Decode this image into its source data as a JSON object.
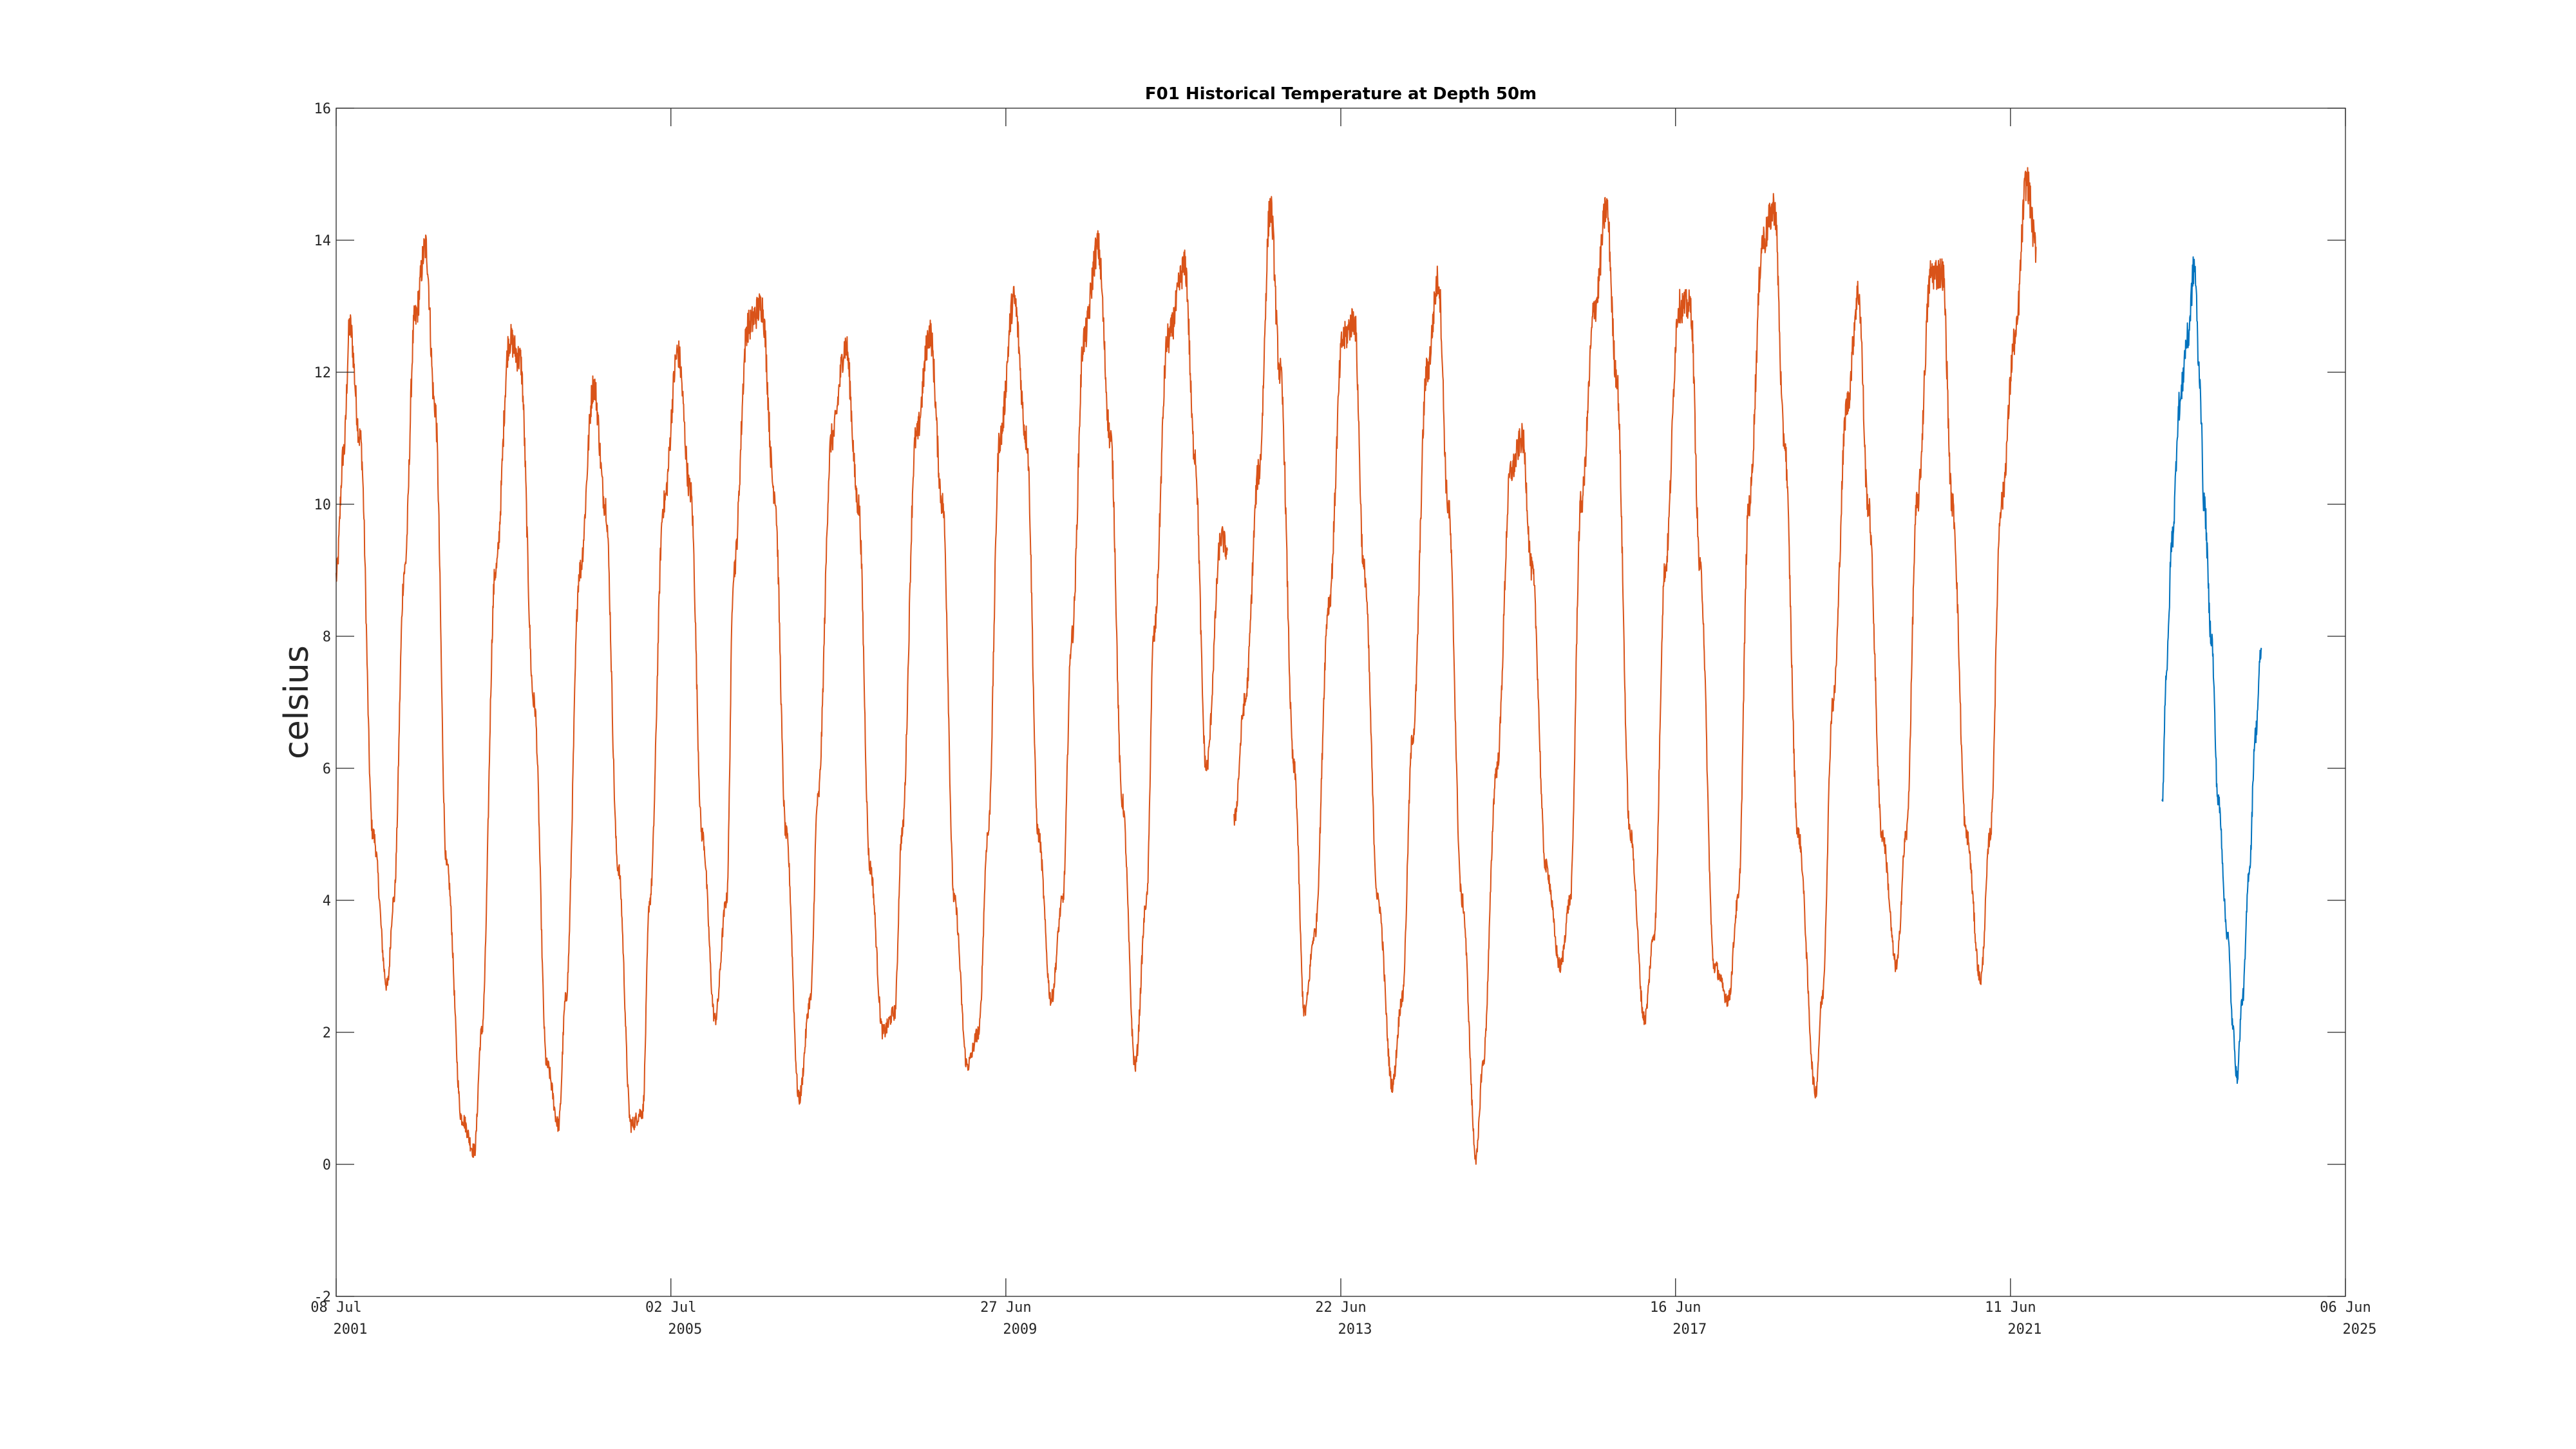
{
  "chart_data": {
    "type": "line",
    "title": "F01 Historical Temperature at Depth 50m",
    "xlabel": "",
    "ylabel": "celsius",
    "xlim": [
      "2001-07-08",
      "2025-06-06"
    ],
    "ylim": [
      -2,
      16
    ],
    "grid": false,
    "x_ticks": [
      {
        "date": "2001-07-08",
        "line1": "08 Jul",
        "line2": "2001"
      },
      {
        "date": "2005-07-02",
        "line1": "02 Jul",
        "line2": "2005"
      },
      {
        "date": "2009-06-27",
        "line1": "27 Jun",
        "line2": "2009"
      },
      {
        "date": "2013-06-22",
        "line1": "22 Jun",
        "line2": "2013"
      },
      {
        "date": "2017-06-16",
        "line1": "16 Jun",
        "line2": "2017"
      },
      {
        "date": "2021-06-11",
        "line1": "11 Jun",
        "line2": "2021"
      },
      {
        "date": "2025-06-06",
        "line1": "06 Jun",
        "line2": "2025"
      }
    ],
    "y_ticks": [
      "-2",
      "0",
      "2",
      "4",
      "6",
      "8",
      "10",
      "12",
      "14",
      "16"
    ],
    "series": [
      {
        "color": "#D95319",
        "x": [
          "2001-07-08",
          "2001-08-10",
          "2001-09-05",
          "2001-10-20",
          "2001-12-15",
          "2002-02-15",
          "2002-03-15",
          "2002-05-01",
          "2002-06-15",
          "2002-08-01",
          "2002-09-10",
          "2002-11-01",
          "2003-01-05",
          "2003-03-01",
          "2003-04-01",
          "2003-06-01",
          "2003-08-01",
          "2003-09-15",
          "2003-11-15",
          "2004-01-10",
          "2004-03-01",
          "2004-04-01",
          "2004-06-01",
          "2004-08-01",
          "2004-09-20",
          "2004-11-15",
          "2005-01-10",
          "2005-03-01",
          "2005-04-01",
          "2005-06-01",
          "2005-08-01",
          "2005-09-25",
          "2005-11-15",
          "2006-01-10",
          "2006-03-01",
          "2006-04-01",
          "2006-06-01",
          "2006-08-01",
          "2006-09-25",
          "2006-11-15",
          "2007-01-10",
          "2007-03-01",
          "2007-04-01",
          "2007-06-01",
          "2007-08-01",
          "2007-09-25",
          "2007-11-15",
          "2008-01-10",
          "2008-03-01",
          "2008-04-01",
          "2008-06-01",
          "2008-08-01",
          "2008-09-25",
          "2008-11-15",
          "2009-01-10",
          "2009-03-01",
          "2009-04-10",
          "2009-06-01",
          "2009-08-01",
          "2009-09-25",
          "2009-11-15",
          "2010-01-10",
          "2010-03-01",
          "2010-04-10",
          "2010-06-01",
          "2010-08-01",
          "2010-09-25",
          "2010-11-15",
          "2011-01-10",
          "2011-03-01",
          "2011-04-01",
          "2011-06-01",
          "2011-08-15",
          "2011-09-25",
          "2011-11-15",
          "2012-01-20",
          "2012-02-15"
        ],
        "y": [
          8.9,
          10.8,
          12.7,
          11.0,
          5.0,
          2.7,
          4.0,
          9.0,
          12.8,
          13.9,
          11.5,
          4.5,
          0.7,
          0.2,
          2.0,
          9.0,
          12.5,
          12.2,
          7.0,
          1.5,
          0.6,
          2.5,
          9.0,
          11.8,
          10.0,
          4.5,
          0.6,
          0.8,
          4.0,
          10.0,
          12.3,
          10.2,
          5.0,
          2.2,
          4.0,
          9.0,
          12.7,
          13.0,
          10.2,
          5.0,
          1.0,
          2.5,
          5.5,
          11.0,
          12.4,
          10.0,
          4.5,
          2.0,
          2.3,
          5.0,
          11.0,
          12.6,
          10.0,
          4.0,
          1.5,
          2.0,
          5.0,
          11.0,
          13.1,
          11.0,
          5.0,
          2.5,
          4.0,
          8.0,
          12.5,
          13.9,
          11.0,
          5.5,
          1.5,
          4.0,
          8.0,
          12.5,
          13.6,
          10.8,
          6.0,
          9.5,
          9.3
        ]
      },
      {
        "color": "#D95319",
        "x": [
          "2012-03-15",
          "2012-05-01",
          "2012-07-01",
          "2012-08-20",
          "2012-10-01",
          "2012-12-01",
          "2013-01-15",
          "2013-03-01",
          "2013-05-01",
          "2013-07-01",
          "2013-08-20",
          "2013-10-01",
          "2013-12-01",
          "2014-02-01",
          "2014-03-15",
          "2014-05-01",
          "2014-07-01",
          "2014-08-20",
          "2014-10-01",
          "2014-12-01",
          "2015-02-01",
          "2015-03-01",
          "2015-05-01",
          "2015-07-01",
          "2015-08-20",
          "2015-10-01",
          "2015-12-01",
          "2016-02-01",
          "2016-03-15",
          "2016-05-01",
          "2016-07-01",
          "2016-08-20",
          "2016-10-01",
          "2016-12-01",
          "2017-02-01",
          "2017-03-15",
          "2017-05-01",
          "2017-07-01",
          "2017-08-20",
          "2017-10-01",
          "2017-12-01",
          "2018-02-01",
          "2018-03-15",
          "2018-05-01",
          "2018-07-01",
          "2018-08-20",
          "2018-10-01",
          "2018-12-01",
          "2019-02-15",
          "2019-03-15",
          "2019-05-01",
          "2019-07-01",
          "2019-08-20",
          "2019-10-01",
          "2019-12-01",
          "2020-02-01",
          "2020-03-15",
          "2020-05-01",
          "2020-07-01",
          "2020-08-20",
          "2020-10-01",
          "2020-12-01",
          "2021-02-01",
          "2021-03-15",
          "2021-05-01",
          "2021-07-01",
          "2021-08-20",
          "2021-09-30"
        ],
        "y": [
          5.2,
          7.0,
          10.5,
          14.5,
          12.0,
          6.0,
          2.3,
          3.5,
          8.5,
          12.5,
          12.8,
          9.0,
          4.0,
          1.2,
          2.5,
          6.5,
          12.0,
          13.4,
          10.0,
          4.0,
          0.1,
          1.5,
          6.0,
          10.5,
          11.0,
          9.0,
          4.5,
          3.0,
          4.0,
          10.0,
          13.0,
          14.5,
          12.0,
          5.0,
          2.2,
          3.5,
          9.0,
          13.0,
          13.0,
          9.0,
          3.0,
          2.5,
          4.0,
          10.0,
          14.0,
          14.5,
          11.0,
          5.0,
          1.1,
          2.5,
          7.0,
          11.5,
          13.2,
          10.0,
          5.0,
          3.0,
          5.0,
          10.0,
          13.5,
          13.5,
          10.0,
          5.0,
          2.8,
          5.0,
          10.0,
          12.5,
          14.9,
          13.9
        ]
      },
      {
        "color": "#0072BD",
        "x": [
          "2023-04-01",
          "2023-04-20",
          "2023-05-15",
          "2023-06-15",
          "2023-07-20",
          "2023-08-20",
          "2023-09-10",
          "2023-10-01",
          "2023-11-01",
          "2023-12-01",
          "2024-01-10",
          "2024-02-05",
          "2024-02-20",
          "2024-03-15",
          "2024-04-15",
          "2024-05-10",
          "2024-06-06"
        ],
        "y": [
          5.5,
          7.5,
          9.5,
          11.5,
          12.5,
          13.6,
          12.0,
          10.0,
          8.0,
          5.5,
          3.5,
          2.0,
          1.3,
          2.5,
          4.5,
          6.5,
          7.8
        ]
      }
    ]
  }
}
